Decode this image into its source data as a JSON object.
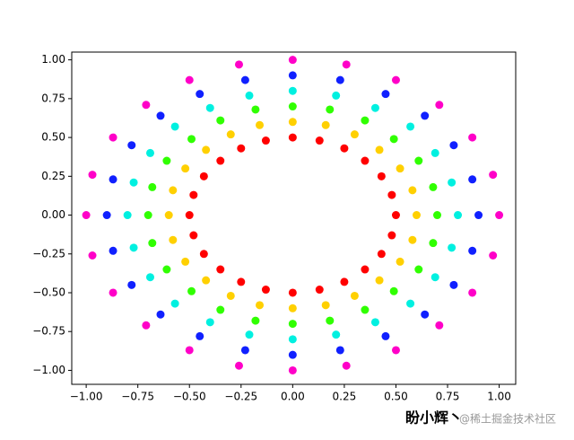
{
  "chart_data": {
    "type": "scatter",
    "xlim": [
      -1.07,
      1.08
    ],
    "ylim": [
      -1.09,
      1.05
    ],
    "xticks": [
      {
        "value": -1.0,
        "label": "−1.00"
      },
      {
        "value": -0.75,
        "label": "−0.75"
      },
      {
        "value": -0.5,
        "label": "−0.50"
      },
      {
        "value": -0.25,
        "label": "−0.25"
      },
      {
        "value": 0,
        "label": "0.00"
      },
      {
        "value": 0.25,
        "label": "0.25"
      },
      {
        "value": 0.5,
        "label": "0.50"
      },
      {
        "value": 0.75,
        "label": "0.75"
      },
      {
        "value": 1.0,
        "label": "1.00"
      }
    ],
    "yticks": [
      {
        "value": -1.0,
        "label": "−1.00"
      },
      {
        "value": -0.75,
        "label": "−0.75"
      },
      {
        "value": -0.5,
        "label": "−0.50"
      },
      {
        "value": -0.25,
        "label": "−0.25"
      },
      {
        "value": 0,
        "label": "0.00"
      },
      {
        "value": 0.25,
        "label": "0.25"
      },
      {
        "value": 0.5,
        "label": "0.50"
      },
      {
        "value": 0.75,
        "label": "0.75"
      },
      {
        "value": 1.0,
        "label": "1.00"
      }
    ],
    "series": [
      {
        "color": "#ff0000",
        "x": [
          0.5,
          0.48,
          0.43,
          0.35,
          0.25,
          0.13,
          0,
          -0.13,
          -0.25,
          -0.35,
          -0.43,
          -0.48,
          -0.5,
          -0.48,
          -0.43,
          -0.35,
          -0.25,
          -0.13,
          0,
          0.13,
          0.25,
          0.35,
          0.43,
          0.48
        ],
        "y": [
          0,
          0.13,
          0.25,
          0.35,
          0.43,
          0.48,
          0.5,
          0.48,
          0.43,
          0.35,
          0.25,
          0.13,
          0,
          -0.13,
          -0.25,
          -0.35,
          -0.43,
          -0.48,
          -0.5,
          -0.48,
          -0.43,
          -0.35,
          -0.25,
          -0.13
        ]
      },
      {
        "color": "#ffd000",
        "x": [
          0.6,
          0.58,
          0.52,
          0.42,
          0.3,
          0.16,
          0,
          -0.16,
          -0.3,
          -0.42,
          -0.52,
          -0.58,
          -0.6,
          -0.58,
          -0.52,
          -0.42,
          -0.3,
          -0.16,
          0,
          0.16,
          0.3,
          0.42,
          0.52,
          0.58
        ],
        "y": [
          0,
          0.16,
          0.3,
          0.42,
          0.52,
          0.58,
          0.6,
          0.58,
          0.52,
          0.42,
          0.3,
          0.16,
          0,
          -0.16,
          -0.3,
          -0.42,
          -0.52,
          -0.58,
          -0.6,
          -0.58,
          -0.52,
          -0.42,
          -0.3,
          -0.16
        ]
      },
      {
        "color": "#30ff00",
        "x": [
          0.7,
          0.68,
          0.61,
          0.49,
          0.35,
          0.18,
          0,
          -0.18,
          -0.35,
          -0.49,
          -0.61,
          -0.68,
          -0.7,
          -0.68,
          -0.61,
          -0.49,
          -0.35,
          -0.18,
          0,
          0.18,
          0.35,
          0.49,
          0.61,
          0.68
        ],
        "y": [
          0,
          0.18,
          0.35,
          0.49,
          0.61,
          0.68,
          0.7,
          0.68,
          0.61,
          0.49,
          0.35,
          0.18,
          0,
          -0.18,
          -0.35,
          -0.49,
          -0.61,
          -0.68,
          -0.7,
          -0.68,
          -0.61,
          -0.49,
          -0.35,
          -0.18
        ]
      },
      {
        "color": "#00f0e0",
        "x": [
          0.8,
          0.77,
          0.69,
          0.57,
          0.4,
          0.21,
          0,
          -0.21,
          -0.4,
          -0.57,
          -0.69,
          -0.77,
          -0.8,
          -0.77,
          -0.69,
          -0.57,
          -0.4,
          -0.21,
          0,
          0.21,
          0.4,
          0.57,
          0.69,
          0.77
        ],
        "y": [
          0,
          0.21,
          0.4,
          0.57,
          0.69,
          0.77,
          0.8,
          0.77,
          0.69,
          0.57,
          0.4,
          0.21,
          0,
          -0.21,
          -0.4,
          -0.57,
          -0.69,
          -0.77,
          -0.8,
          -0.77,
          -0.69,
          -0.57,
          -0.4,
          -0.21
        ]
      },
      {
        "color": "#1020ff",
        "x": [
          0.9,
          0.87,
          0.78,
          0.64,
          0.45,
          0.23,
          0,
          -0.23,
          -0.45,
          -0.64,
          -0.78,
          -0.87,
          -0.9,
          -0.87,
          -0.78,
          -0.64,
          -0.45,
          -0.23,
          0,
          0.23,
          0.45,
          0.64,
          0.78,
          0.87
        ],
        "y": [
          0,
          0.23,
          0.45,
          0.64,
          0.78,
          0.87,
          0.9,
          0.87,
          0.78,
          0.64,
          0.45,
          0.23,
          0,
          -0.23,
          -0.45,
          -0.64,
          -0.78,
          -0.87,
          -0.9,
          -0.87,
          -0.78,
          -0.64,
          -0.45,
          -0.23
        ]
      },
      {
        "color": "#ff00c8",
        "x": [
          1,
          0.97,
          0.87,
          0.71,
          0.5,
          0.26,
          0,
          -0.26,
          -0.5,
          -0.71,
          -0.87,
          -0.97,
          -1,
          -0.97,
          -0.87,
          -0.71,
          -0.5,
          -0.26,
          0,
          0.26,
          0.5,
          0.71,
          0.87,
          0.97
        ],
        "y": [
          0,
          0.26,
          0.5,
          0.71,
          0.87,
          0.97,
          1,
          0.97,
          0.87,
          0.71,
          0.5,
          0.26,
          0,
          -0.26,
          -0.5,
          -0.71,
          -0.87,
          -0.97,
          -1,
          -0.97,
          -0.87,
          -0.71,
          -0.5,
          -0.26
        ]
      }
    ]
  },
  "watermark": [
    "盼小辉丶",
    "@稀土掘金技术社区"
  ]
}
